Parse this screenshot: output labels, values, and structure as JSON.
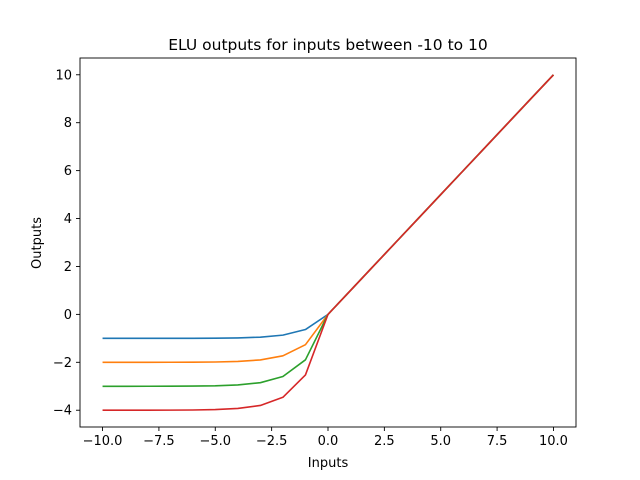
{
  "chart_data": {
    "type": "line",
    "title": "ELU outputs for inputs between -10 to 10",
    "xlabel": "Inputs",
    "ylabel": "Outputs",
    "xlim": [
      -11,
      11
    ],
    "ylim": [
      -4.7,
      10.7
    ],
    "xticks": [
      -10,
      -7.5,
      -5,
      -2.5,
      0,
      2.5,
      5,
      7.5,
      10
    ],
    "xtick_labels": [
      "−10.0",
      "−7.5",
      "−5.0",
      "−2.5",
      "0.0",
      "2.5",
      "5.0",
      "7.5",
      "10.0"
    ],
    "yticks": [
      -4,
      -2,
      0,
      2,
      4,
      6,
      8,
      10
    ],
    "ytick_labels": [
      "−4",
      "−2",
      "0",
      "2",
      "4",
      "6",
      "8",
      "10"
    ],
    "grid": false,
    "x": [
      -10,
      -9,
      -8,
      -7,
      -6,
      -5,
      -4,
      -3,
      -2,
      -1,
      0,
      1,
      2,
      3,
      4,
      5,
      6,
      7,
      8,
      9,
      10
    ],
    "series": [
      {
        "color": "#1f77b4",
        "values": [
          -1.0,
          -1.0,
          -1.0,
          -1.0,
          -0.998,
          -0.993,
          -0.982,
          -0.95,
          -0.865,
          -0.632,
          0,
          1,
          2,
          3,
          4,
          5,
          6,
          7,
          8,
          9,
          10
        ]
      },
      {
        "color": "#ff7f0e",
        "values": [
          -2.0,
          -2.0,
          -1.999,
          -1.998,
          -1.995,
          -1.987,
          -1.963,
          -1.9,
          -1.729,
          -1.264,
          0,
          1,
          2,
          3,
          4,
          5,
          6,
          7,
          8,
          9,
          10
        ]
      },
      {
        "color": "#2ca02c",
        "values": [
          -3.0,
          -3.0,
          -2.999,
          -2.997,
          -2.993,
          -2.98,
          -2.945,
          -2.851,
          -2.594,
          -1.896,
          0,
          1,
          2,
          3,
          4,
          5,
          6,
          7,
          8,
          9,
          10
        ]
      },
      {
        "color": "#d62728",
        "values": [
          -4.0,
          -4.0,
          -3.999,
          -3.996,
          -3.99,
          -3.973,
          -3.927,
          -3.801,
          -3.459,
          -2.528,
          0,
          1,
          2,
          3,
          4,
          5,
          6,
          7,
          8,
          9,
          10
        ]
      }
    ]
  }
}
